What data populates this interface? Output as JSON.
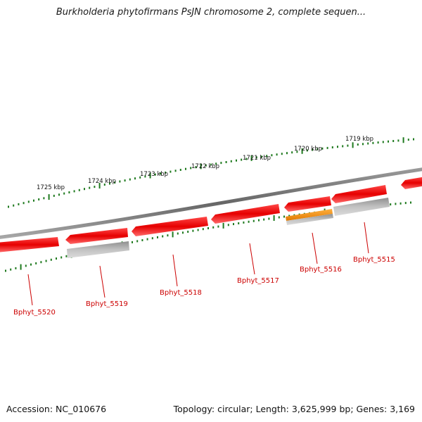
{
  "title": "Burkholderia phytofirmans PsJN chromosome 2, complete sequen...",
  "footer": {
    "accession": "Accession: NC_010676",
    "summary": "Topology: circular; Length: 3,625,999 bp; Genes: 3,169"
  },
  "colors": {
    "backbone": "#7c7c7c",
    "gene_red": "#ee0000",
    "gene_gray": "#b4b4b4",
    "gene_orange": "#ee8800",
    "ticks": "#1f7a1f",
    "label": "#cc0000",
    "leader": "#cc0000"
  },
  "kbp_labels": [
    "1725 kbp",
    "1724 kbp",
    "1723 kbp",
    "1722 kbp",
    "1721 kbp",
    "1720 kbp",
    "1719 kbp"
  ],
  "genes": [
    {
      "label": "Bphyt_5520"
    },
    {
      "label": "Bphyt_5519"
    },
    {
      "label": "Bphyt_5518"
    },
    {
      "label": "Bphyt_5517"
    },
    {
      "label": "Bphyt_5516"
    },
    {
      "label": "Bphyt_5515"
    }
  ]
}
